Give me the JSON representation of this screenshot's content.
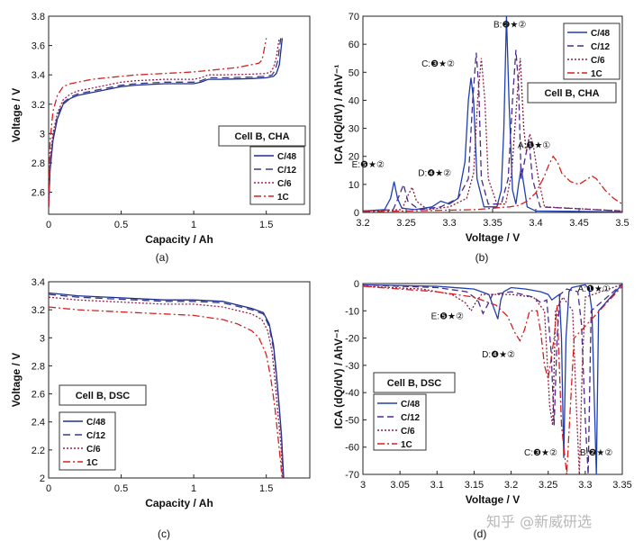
{
  "chart_data": [
    {
      "id": "a",
      "type": "line",
      "caption": "(a)",
      "xlabel": "Capacity / Ah",
      "ylabel": "Voltage / V",
      "xlim": [
        0,
        1.8
      ],
      "ylim": [
        2.45,
        3.8
      ],
      "xticks": [
        0,
        0.5,
        1,
        1.5
      ],
      "xtick_labels": [
        "0",
        "0.5",
        "1",
        "1.5"
      ],
      "yticks": [
        2.6,
        2.8,
        3,
        3.2,
        3.4,
        3.6,
        3.8
      ],
      "ytick_labels": [
        "2.6",
        "2.8",
        "3",
        "3.2",
        "3.4",
        "3.6",
        "3.8"
      ],
      "annotation_box": "Cell B, CHA",
      "legend": [
        "C/48",
        "C/12",
        "C/6",
        "1C"
      ],
      "series": [
        {
          "name": "C/48",
          "color": "#1f2f8f",
          "dash": "solid",
          "x": [
            0,
            0.01,
            0.03,
            0.06,
            0.1,
            0.15,
            0.2,
            0.3,
            0.4,
            0.5,
            0.6,
            0.8,
            1.0,
            1.05,
            1.1,
            1.2,
            1.4,
            1.5,
            1.55,
            1.57,
            1.59,
            1.6,
            1.61
          ],
          "y": [
            2.5,
            2.75,
            2.95,
            3.1,
            3.2,
            3.24,
            3.26,
            3.28,
            3.3,
            3.32,
            3.33,
            3.34,
            3.34,
            3.35,
            3.37,
            3.37,
            3.375,
            3.38,
            3.39,
            3.41,
            3.47,
            3.56,
            3.65
          ]
        },
        {
          "name": "C/12",
          "color": "#3a3a8a",
          "dash": "8,5",
          "x": [
            0,
            0.01,
            0.03,
            0.06,
            0.1,
            0.15,
            0.2,
            0.3,
            0.4,
            0.5,
            0.6,
            0.8,
            1.0,
            1.05,
            1.1,
            1.2,
            1.4,
            1.5,
            1.54,
            1.56,
            1.58,
            1.59,
            1.6
          ],
          "y": [
            2.5,
            2.78,
            2.97,
            3.12,
            3.21,
            3.25,
            3.27,
            3.29,
            3.31,
            3.33,
            3.34,
            3.35,
            3.35,
            3.36,
            3.38,
            3.38,
            3.385,
            3.39,
            3.4,
            3.43,
            3.5,
            3.58,
            3.65
          ]
        },
        {
          "name": "C/6",
          "color": "#9a2050",
          "dash": "2,2",
          "x": [
            0,
            0.01,
            0.03,
            0.06,
            0.1,
            0.15,
            0.2,
            0.3,
            0.4,
            0.5,
            0.6,
            0.8,
            1.0,
            1.05,
            1.1,
            1.2,
            1.4,
            1.5,
            1.53,
            1.55,
            1.57,
            1.58,
            1.59
          ],
          "y": [
            2.5,
            2.82,
            3.0,
            3.14,
            3.23,
            3.27,
            3.29,
            3.31,
            3.33,
            3.35,
            3.36,
            3.37,
            3.37,
            3.38,
            3.4,
            3.4,
            3.405,
            3.41,
            3.42,
            3.45,
            3.52,
            3.59,
            3.65
          ]
        },
        {
          "name": "1C",
          "color": "#d42020",
          "dash": "8,3,2,3",
          "x": [
            0,
            0.01,
            0.03,
            0.06,
            0.1,
            0.15,
            0.2,
            0.3,
            0.4,
            0.5,
            0.6,
            0.8,
            1.0,
            1.2,
            1.3,
            1.4,
            1.45,
            1.47,
            1.48,
            1.49,
            1.5
          ],
          "y": [
            2.5,
            2.95,
            3.15,
            3.26,
            3.32,
            3.34,
            3.35,
            3.37,
            3.38,
            3.39,
            3.4,
            3.41,
            3.42,
            3.44,
            3.45,
            3.47,
            3.48,
            3.5,
            3.54,
            3.6,
            3.65
          ]
        }
      ]
    },
    {
      "id": "b",
      "type": "line",
      "caption": "(b)",
      "xlabel": "Voltage / V",
      "ylabel": "ICA (dQ/dV) / AhV⁻¹",
      "xlim": [
        3.2,
        3.5
      ],
      "ylim": [
        0,
        70
      ],
      "xticks": [
        3.2,
        3.25,
        3.3,
        3.35,
        3.4,
        3.45,
        3.5
      ],
      "xtick_labels": [
        "3.2",
        "3.25",
        "3.3",
        "3.35",
        "3.4",
        "3.45",
        "3.5"
      ],
      "yticks": [
        0,
        10,
        20,
        30,
        40,
        50,
        60,
        70
      ],
      "ytick_labels": [
        "0",
        "10",
        "20",
        "30",
        "40",
        "50",
        "60",
        "70"
      ],
      "annotation_box": "Cell B, CHA",
      "legend": [
        "C/48",
        "C/12",
        "C/6",
        "1C"
      ],
      "peak_labels": [
        {
          "text": "A:❶★①",
          "x": 3.398,
          "y": 23
        },
        {
          "text": "B:❷★②",
          "x": 3.37,
          "y": 66
        },
        {
          "text": "C:❸★②",
          "x": 3.287,
          "y": 52
        },
        {
          "text": "D:❹★②",
          "x": 3.283,
          "y": 13
        },
        {
          "text": "E:❺★②",
          "x": 3.206,
          "y": 16
        }
      ],
      "series": [
        {
          "name": "C/48",
          "color": "#1f3fb0",
          "dash": "solid",
          "x": [
            3.2,
            3.225,
            3.232,
            3.236,
            3.24,
            3.245,
            3.26,
            3.28,
            3.29,
            3.3,
            3.31,
            3.318,
            3.322,
            3.325,
            3.328,
            3.332,
            3.34,
            3.355,
            3.36,
            3.363,
            3.366,
            3.369,
            3.373,
            3.377,
            3.38,
            3.383,
            3.386,
            3.39,
            3.4,
            3.5
          ],
          "y": [
            0.5,
            1,
            5,
            11,
            5,
            1.5,
            1,
            2,
            4,
            3,
            5,
            18,
            40,
            48,
            40,
            12,
            2,
            2,
            8,
            30,
            70,
            40,
            8,
            3,
            10,
            16,
            10,
            2,
            0.5,
            0.2
          ]
        },
        {
          "name": "C/12",
          "color": "#4a2a90",
          "dash": "7,4",
          "x": [
            3.2,
            3.235,
            3.242,
            3.247,
            3.252,
            3.265,
            3.29,
            3.31,
            3.322,
            3.327,
            3.331,
            3.334,
            3.337,
            3.345,
            3.36,
            3.368,
            3.373,
            3.377,
            3.38,
            3.383,
            3.388,
            3.392,
            3.396,
            3.405,
            3.5
          ],
          "y": [
            0.5,
            1,
            6,
            10,
            4,
            1,
            2,
            5,
            12,
            40,
            57,
            45,
            12,
            3,
            3,
            12,
            40,
            58,
            45,
            12,
            20,
            26,
            12,
            2,
            0.5
          ]
        },
        {
          "name": "C/6",
          "color": "#8a2040",
          "dash": "2,2",
          "x": [
            3.2,
            3.245,
            3.252,
            3.257,
            3.262,
            3.275,
            3.3,
            3.32,
            3.328,
            3.333,
            3.337,
            3.341,
            3.345,
            3.355,
            3.365,
            3.372,
            3.378,
            3.382,
            3.386,
            3.389,
            3.393,
            3.397,
            3.403,
            3.41,
            3.5
          ],
          "y": [
            0.5,
            1,
            6,
            9,
            4,
            1,
            2,
            5,
            14,
            42,
            55,
            40,
            12,
            3,
            3,
            14,
            40,
            55,
            30,
            22,
            28,
            24,
            12,
            2,
            0.5
          ]
        },
        {
          "name": "1C",
          "color": "#d42020",
          "dash": "8,3,2,3",
          "x": [
            3.2,
            3.25,
            3.3,
            3.33,
            3.35,
            3.36,
            3.37,
            3.38,
            3.39,
            3.4,
            3.41,
            3.415,
            3.42,
            3.425,
            3.43,
            3.44,
            3.45,
            3.46,
            3.465,
            3.47,
            3.48,
            3.49,
            3.5
          ],
          "y": [
            0.3,
            0.5,
            0.8,
            1,
            1.5,
            1.8,
            2,
            2.5,
            4,
            7,
            13,
            17,
            20,
            18,
            14,
            11,
            10,
            12,
            13,
            12,
            8,
            5,
            3
          ]
        }
      ]
    },
    {
      "id": "c",
      "type": "line",
      "caption": "(c)",
      "xlabel": "Capacity / Ah",
      "ylabel": "Voltage / V",
      "xlim": [
        0,
        1.8
      ],
      "ylim": [
        2.0,
        3.4
      ],
      "xticks": [
        0,
        0.5,
        1,
        1.5
      ],
      "xtick_labels": [
        "0",
        "0.5",
        "1",
        "1.5"
      ],
      "yticks": [
        2,
        2.2,
        2.4,
        2.6,
        2.8,
        3,
        3.2,
        3.4
      ],
      "ytick_labels": [
        "2",
        "2.2",
        "2.4",
        "2.6",
        "2.8",
        "3",
        "3.2",
        "3.4"
      ],
      "annotation_box": "Cell B, DSC",
      "legend": [
        "C/48",
        "C/12",
        "C/6",
        "1C"
      ],
      "series": [
        {
          "name": "C/48",
          "color": "#1f2f8f",
          "dash": "solid",
          "x": [
            0,
            0.1,
            0.2,
            0.4,
            0.6,
            0.8,
            1.0,
            1.2,
            1.4,
            1.48,
            1.52,
            1.55,
            1.57,
            1.59,
            1.605,
            1.615,
            1.62
          ],
          "y": [
            3.32,
            3.31,
            3.3,
            3.29,
            3.28,
            3.27,
            3.27,
            3.26,
            3.21,
            3.18,
            3.1,
            2.95,
            2.75,
            2.5,
            2.3,
            2.1,
            2.0
          ]
        },
        {
          "name": "C/12",
          "color": "#3a3a8a",
          "dash": "8,5",
          "x": [
            0,
            0.1,
            0.2,
            0.4,
            0.6,
            0.8,
            1.0,
            1.2,
            1.4,
            1.48,
            1.52,
            1.55,
            1.57,
            1.59,
            1.605,
            1.612,
            1.617
          ],
          "y": [
            3.31,
            3.3,
            3.29,
            3.28,
            3.27,
            3.26,
            3.26,
            3.25,
            3.2,
            3.17,
            3.08,
            2.92,
            2.72,
            2.48,
            2.28,
            2.1,
            2.0
          ]
        },
        {
          "name": "C/6",
          "color": "#9a2050",
          "dash": "2,2",
          "x": [
            0,
            0.1,
            0.2,
            0.4,
            0.6,
            0.8,
            1.0,
            1.2,
            1.4,
            1.47,
            1.51,
            1.54,
            1.56,
            1.58,
            1.6,
            1.608,
            1.613
          ],
          "y": [
            3.29,
            3.28,
            3.27,
            3.26,
            3.25,
            3.24,
            3.24,
            3.22,
            3.17,
            3.13,
            3.05,
            2.9,
            2.7,
            2.46,
            2.25,
            2.08,
            2.0
          ]
        },
        {
          "name": "1C",
          "color": "#d42020",
          "dash": "8,3,2,3",
          "x": [
            0,
            0.1,
            0.2,
            0.4,
            0.6,
            0.8,
            1.0,
            1.2,
            1.3,
            1.4,
            1.45,
            1.5,
            1.53,
            1.56,
            1.58,
            1.6,
            1.608
          ],
          "y": [
            3.22,
            3.21,
            3.2,
            3.19,
            3.18,
            3.17,
            3.16,
            3.13,
            3.1,
            3.05,
            3.0,
            2.88,
            2.72,
            2.5,
            2.3,
            2.1,
            2.0
          ]
        }
      ]
    },
    {
      "id": "d",
      "type": "line",
      "caption": "(d)",
      "xlabel": "Voltage / V",
      "ylabel": "ICA (dQ/dV) / AhV⁻¹",
      "xlim": [
        3.0,
        3.35
      ],
      "ylim": [
        -70,
        0
      ],
      "xticks": [
        3.0,
        3.05,
        3.1,
        3.15,
        3.2,
        3.25,
        3.3,
        3.35
      ],
      "xtick_labels": [
        "3",
        "3.05",
        "3.1",
        "3.15",
        "3.2",
        "3.25",
        "3.3",
        "3.35"
      ],
      "yticks": [
        0,
        -10,
        -20,
        -30,
        -40,
        -50,
        -60,
        -70
      ],
      "ytick_labels": [
        "0",
        "-10",
        "-20",
        "-30",
        "-40",
        "-50",
        "-60",
        "-70"
      ],
      "annotation_box": "Cell B, DSC",
      "legend": [
        "C/48",
        "C/12",
        "C/6",
        "1C"
      ],
      "peak_labels": [
        {
          "text": "A:❶★①",
          "x": 3.312,
          "y": -3
        },
        {
          "text": "B:❷★②",
          "x": 3.315,
          "y": -63
        },
        {
          "text": "C:❸★②",
          "x": 3.24,
          "y": -63
        },
        {
          "text": "D:❹★②",
          "x": 3.183,
          "y": -27
        },
        {
          "text": "E:❺★②",
          "x": 3.114,
          "y": -13
        }
      ],
      "series": [
        {
          "name": "C/48",
          "color": "#1f3fb0",
          "dash": "solid",
          "x": [
            3.0,
            3.1,
            3.15,
            3.17,
            3.178,
            3.182,
            3.186,
            3.19,
            3.2,
            3.22,
            3.24,
            3.25,
            3.255,
            3.26,
            3.265,
            3.268,
            3.271,
            3.274,
            3.278,
            3.282,
            3.29,
            3.3,
            3.305,
            3.309,
            3.312,
            3.315,
            3.318,
            3.35
          ],
          "y": [
            -0.5,
            -1,
            -2,
            -4,
            -10,
            -13,
            -6,
            -3,
            -1.5,
            -2,
            -3,
            -4,
            -6,
            -5,
            -4,
            -20,
            -64,
            -20,
            -3,
            -1.5,
            -1,
            -0.5,
            -2,
            -10,
            -40,
            -70,
            -10,
            -0.2
          ]
        },
        {
          "name": "C/12",
          "color": "#4a2a90",
          "dash": "7,4",
          "x": [
            3.0,
            3.1,
            3.14,
            3.155,
            3.162,
            3.168,
            3.175,
            3.2,
            3.23,
            3.24,
            3.248,
            3.254,
            3.258,
            3.262,
            3.266,
            3.275,
            3.29,
            3.295,
            3.3,
            3.304,
            3.308,
            3.35
          ],
          "y": [
            -0.5,
            -1.5,
            -3,
            -6,
            -11,
            -8,
            -4,
            -3,
            -5,
            -7,
            -6,
            -25,
            -52,
            -20,
            -4,
            -2,
            -3,
            -15,
            -50,
            -70,
            -10,
            -0.2
          ]
        },
        {
          "name": "C/6",
          "color": "#8a2040",
          "dash": "2,2",
          "x": [
            3.0,
            3.08,
            3.12,
            3.138,
            3.146,
            3.152,
            3.16,
            3.2,
            3.23,
            3.245,
            3.252,
            3.256,
            3.26,
            3.27,
            3.283,
            3.288,
            3.292,
            3.296,
            3.3,
            3.35
          ],
          "y": [
            -1,
            -2,
            -4,
            -7,
            -10,
            -7,
            -4,
            -4,
            -5,
            -10,
            -45,
            -52,
            -10,
            -5,
            -10,
            -45,
            -70,
            -30,
            -5,
            -0.3
          ]
        },
        {
          "name": "1C",
          "color": "#d42020",
          "dash": "8,3,2,3",
          "x": [
            3.0,
            3.05,
            3.1,
            3.15,
            3.18,
            3.195,
            3.205,
            3.212,
            3.218,
            3.225,
            3.235,
            3.24,
            3.245,
            3.25,
            3.258,
            3.262,
            3.268,
            3.275,
            3.285,
            3.35
          ],
          "y": [
            -1,
            -2,
            -3,
            -5,
            -8,
            -12,
            -18,
            -21,
            -17,
            -10,
            -10,
            -18,
            -30,
            -35,
            -20,
            -8,
            -52,
            -70,
            -20,
            -1
          ]
        }
      ]
    }
  ],
  "watermark": "知乎 @新威研选"
}
